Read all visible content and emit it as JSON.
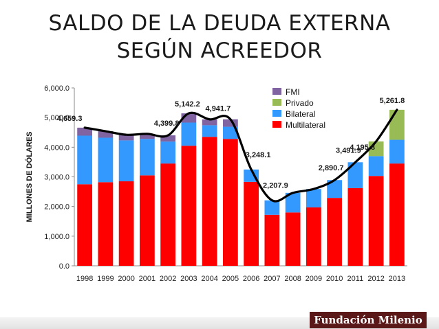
{
  "title_line1": "SALDO DE LA DEUDA EXTERNA",
  "title_line2": "SEGÚN ACREEDOR",
  "logo_text": "Fundación Milenio",
  "chart_data": {
    "type": "bar",
    "stacked": true,
    "ylabel": "MILLONES DE DÓLARES",
    "ylim": [
      0,
      6000
    ],
    "yticks": [
      0,
      1000,
      2000,
      3000,
      4000,
      5000,
      6000
    ],
    "ytick_labels": [
      "0.0",
      "1,000.0",
      "2,000.0",
      "3,000.0",
      "4,000.0",
      "5,000.0",
      "6,000.0"
    ],
    "grid": false,
    "legend_position": "top-right",
    "categories": [
      "1998",
      "1999",
      "2000",
      "2001",
      "2002",
      "2003",
      "2004",
      "2005",
      "2006",
      "2007",
      "2008",
      "2009",
      "2010",
      "2011",
      "2012",
      "2013"
    ],
    "series": [
      {
        "name": "Multilateral",
        "color": "#ff0000",
        "values": [
          2750,
          2820,
          2850,
          3050,
          3450,
          4050,
          4350,
          4280,
          2830,
          1720,
          1800,
          1970,
          2290,
          2620,
          3030,
          3450
        ]
      },
      {
        "name": "Bilateral",
        "color": "#3399ff",
        "values": [
          1640,
          1500,
          1380,
          1230,
          740,
          780,
          390,
          410,
          418,
          488,
          660,
          621,
          601,
          872,
          670,
          800
        ]
      },
      {
        "name": "Privado",
        "color": "#99bb55",
        "values": [
          0,
          0,
          0,
          0,
          0,
          0,
          0,
          0,
          0,
          0,
          0,
          0,
          0,
          0,
          496,
          1012
        ]
      },
      {
        "name": "FMI",
        "color": "#8064a2",
        "values": [
          269,
          220,
          190,
          170,
          210,
          312,
          200,
          252,
          0,
          0,
          0,
          0,
          0,
          0,
          0,
          0
        ]
      }
    ],
    "totals": [
      4659.3,
      4540,
      4420,
      4450,
      4399.8,
      5142.2,
      4940,
      4941.7,
      3248.1,
      2207.9,
      2460,
      2591,
      2890.7,
      3491.9,
      4195.8,
      5261.8
    ],
    "data_labels": [
      {
        "year": "1998",
        "text": "4,659.3"
      },
      {
        "year": "2002",
        "text": "4,399.8"
      },
      {
        "year": "2003",
        "text": "5,142.2"
      },
      {
        "year": "2005",
        "text": "4,941.7"
      },
      {
        "year": "2006",
        "text": "3,248.1"
      },
      {
        "year": "2007",
        "text": "2,207.9"
      },
      {
        "year": "2010",
        "text": "2,890.7"
      },
      {
        "year": "2011",
        "text": "3,491.9"
      },
      {
        "year": "2012",
        "text": "4,195.8"
      },
      {
        "year": "2013",
        "text": "5,261.8"
      }
    ],
    "legend": [
      "FMI",
      "Privado",
      "Bilateral",
      "Multilateral"
    ]
  }
}
